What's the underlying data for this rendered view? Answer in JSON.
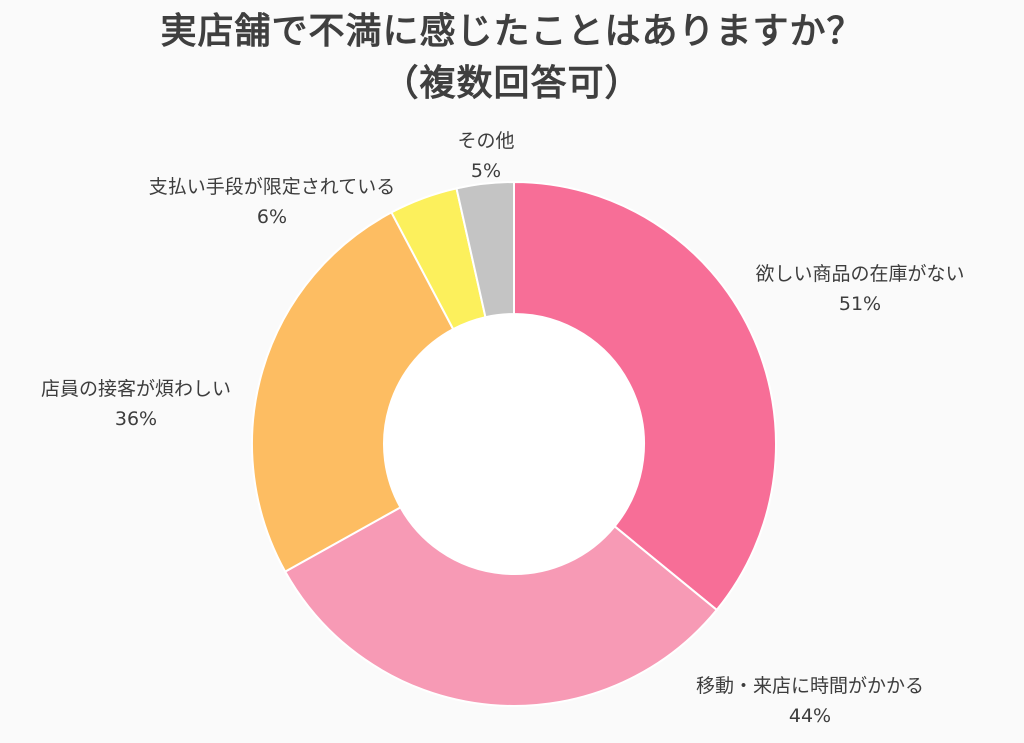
{
  "chart_data": {
    "type": "pie",
    "title": "実店舗で不満に感じたことはありますか？",
    "subtitle": "（複数回答可）",
    "hole": true,
    "slices": [
      {
        "label": "欲しい商品の在庫がない",
        "value_text": "51%",
        "value": 51,
        "color": "#f76e97"
      },
      {
        "label": "移動・来店に時間がかかる",
        "value_text": "44%",
        "value": 44,
        "color": "#f79ab5"
      },
      {
        "label": "店員の接客が煩わしい",
        "value_text": "36%",
        "value": 36,
        "color": "#fdbd62"
      },
      {
        "label": "支払い手段が限定されている",
        "value_text": "6%",
        "value": 6,
        "color": "#fcf05c"
      },
      {
        "label": "その他",
        "value_text": "5%",
        "value": 5,
        "color": "#c4c4c4"
      }
    ]
  }
}
